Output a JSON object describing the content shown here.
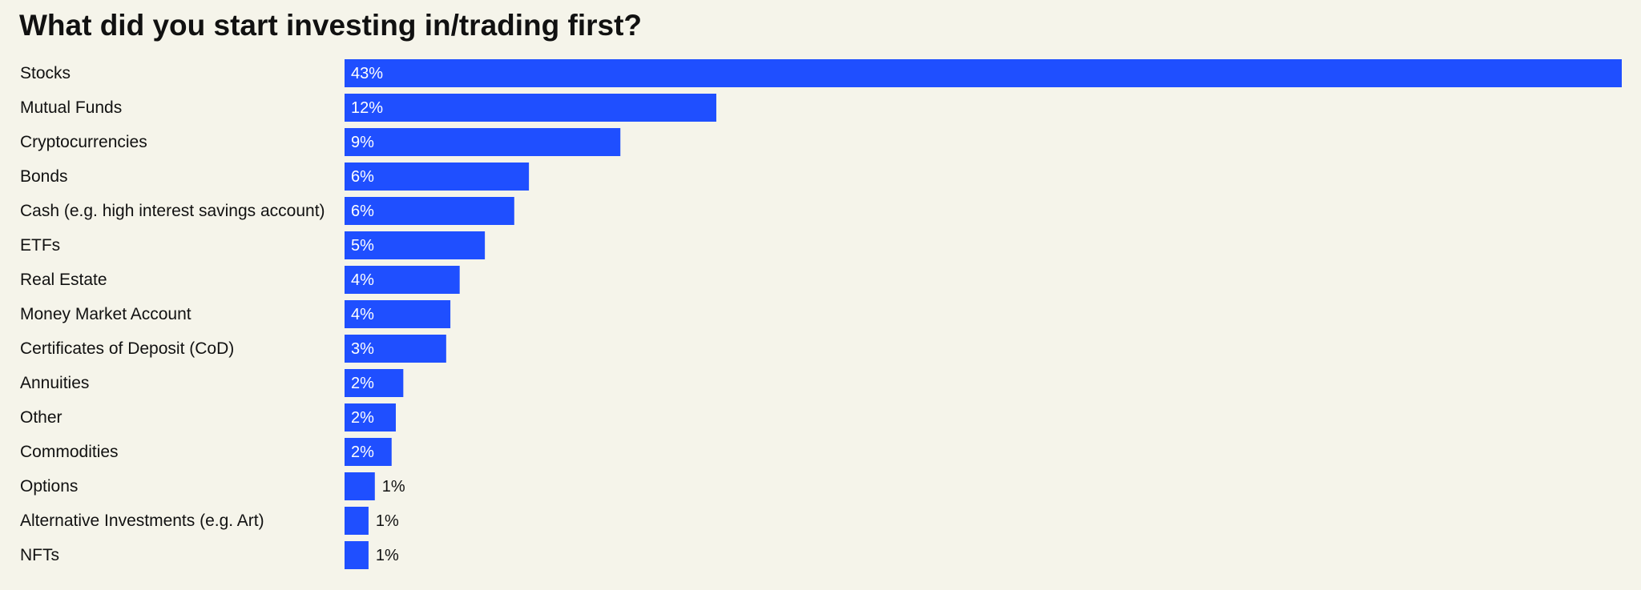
{
  "chart_data": {
    "type": "bar",
    "orientation": "horizontal",
    "title": "What did you start investing in/trading first?",
    "categories": [
      "Stocks",
      "Mutual Funds",
      "Cryptocurrencies",
      "Bonds",
      "Cash (e.g. high interest savings account)",
      "ETFs",
      "Real Estate",
      "Money Market Account",
      "Certificates of Deposit (CoD)",
      "Annuities",
      "Other",
      "Commodities",
      "Options",
      "Alternative Investments (e.g. Art)",
      "NFTs"
    ],
    "values": [
      42.6,
      12.4,
      9.2,
      6.15,
      5.66,
      4.68,
      3.84,
      3.53,
      3.39,
      1.96,
      1.71,
      1.57,
      1.01,
      0.8,
      0.8
    ],
    "value_labels": [
      "43%",
      "12%",
      "9%",
      "6%",
      "6%",
      "5%",
      "4%",
      "4%",
      "3%",
      "2%",
      "2%",
      "2%",
      "1%",
      "1%",
      "1%"
    ],
    "color": "#1f4fff",
    "xlim": [
      0,
      42.6
    ]
  }
}
